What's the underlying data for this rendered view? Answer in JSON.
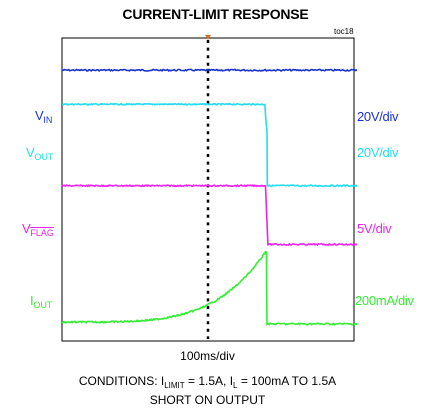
{
  "title": "CURRENT-LIMIT RESPONSE",
  "figure_id": "toc18",
  "chart_data": {
    "type": "line",
    "title": "CURRENT-LIMIT RESPONSE",
    "x_scale": "100ms/div",
    "grid": false,
    "series": [
      {
        "name": "VIN",
        "label_main": "V",
        "label_sub": "IN",
        "scale": "20V/div",
        "color": "#1a33cc",
        "event": "constant",
        "level": 3.15,
        "level_after": 3.15,
        "t_event": 1.98
      },
      {
        "name": "VOUT",
        "label_main": "V",
        "label_sub": "OUT",
        "scale": "20V/div",
        "color": "#22ddee",
        "event": "drop",
        "level": 2.25,
        "level_after": 0.1,
        "t_event": 1.95
      },
      {
        "name": "VFLAG",
        "label_main": "V",
        "label_sub": "FLAG",
        "scale": "5V/div",
        "color": "#ee22ee",
        "event": "drop",
        "level": 0.1,
        "level_after": -1.45,
        "t_event": 1.97
      },
      {
        "name": "IOUT",
        "label_main": "I",
        "label_sub": "OUT",
        "scale": "200mA/div",
        "color": "#33ee33",
        "event": "ramp_drop",
        "level": -3.5,
        "level_peak": -1.65,
        "level_after": -3.55,
        "t_event": 1.97
      }
    ]
  },
  "x_axis_label": "100ms/div",
  "conditions": {
    "prefix": "CONDITIONS: I",
    "limit_sub": "LIMIT",
    "limit_value": " = 1.5A, I",
    "load_sub": "L",
    "load_value": " = 100mA TO 1.5A",
    "line2": "SHORT ON OUTPUT"
  }
}
